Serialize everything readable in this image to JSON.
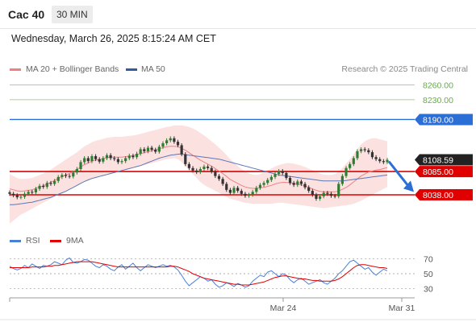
{
  "header": {
    "instrument": "Cac 40",
    "timeframe": "30 MIN"
  },
  "timestamp": "Wednesday, March 26, 2025 8:15:24 AM CET",
  "legend": [
    {
      "label": "MA 20 + Bollinger Bands",
      "color": "#f08080"
    },
    {
      "label": "MA 50",
      "color": "#2f5d9e"
    }
  ],
  "rsi_legend": [
    {
      "label": "RSI",
      "color": "#4a7fd8"
    },
    {
      "label": "9MA",
      "color": "#e00000"
    }
  ],
  "credit": "Research © 2025 Trading Central",
  "chart_data": [
    {
      "type": "candlestick",
      "ylim": [
        7960,
        8285
      ],
      "x_tick_labels": [
        "Mar 24",
        "Mar 31"
      ],
      "levels": [
        {
          "value": 8260,
          "label": "8260.00",
          "kind": "target"
        },
        {
          "value": 8230,
          "label": "8230.00",
          "kind": "target"
        },
        {
          "value": 8190,
          "label": "8190.00",
          "kind": "resistance"
        },
        {
          "value": 8108.59,
          "label": "8108.59",
          "kind": "last"
        },
        {
          "value": 8085,
          "label": "8085.00",
          "kind": "pivot"
        },
        {
          "value": 8038,
          "label": "8038.00",
          "kind": "support"
        }
      ],
      "close": [
        8040,
        8037,
        8033,
        8034,
        8040,
        8044,
        8043,
        8050,
        8056,
        8054,
        8062,
        8060,
        8066,
        8074,
        8078,
        8076,
        8075,
        8083,
        8090,
        8104,
        8112,
        8106,
        8116,
        8110,
        8105,
        8112,
        8118,
        8112,
        8110,
        8104,
        8106,
        8112,
        8117,
        8114,
        8121,
        8130,
        8126,
        8133,
        8129,
        8125,
        8135,
        8142,
        8148,
        8152,
        8145,
        8138,
        8120,
        8100,
        8092,
        8087,
        8084,
        8090,
        8095,
        8092,
        8085,
        8076,
        8070,
        8060,
        8048,
        8042,
        8052,
        8046,
        8040,
        8036,
        8038,
        8044,
        8052,
        8058,
        8062,
        8068,
        8074,
        8080,
        8086,
        8082,
        8072,
        8062,
        8058,
        8065,
        8060,
        8053,
        8046,
        8038,
        8030,
        8035,
        8042,
        8040,
        8036,
        8035,
        8060,
        8076,
        8092,
        8100,
        8112,
        8126,
        8130,
        8128,
        8124,
        8114,
        8110,
        8106,
        8104,
        8108.59
      ],
      "ma20": [
        8050,
        8048,
        8046,
        8045,
        8046,
        8047,
        8048,
        8051,
        8054,
        8056,
        8060,
        8063,
        8067,
        8071,
        8075,
        8078,
        8081,
        8085,
        8089,
        8094,
        8099,
        8102,
        8106,
        8108,
        8109,
        8111,
        8113,
        8114,
        8114,
        8114,
        8114,
        8115,
        8116,
        8117,
        8119,
        8121,
        8123,
        8125,
        8127,
        8129,
        8131,
        8133,
        8135,
        8136,
        8136,
        8135,
        8132,
        8128,
        8123,
        8118,
        8113,
        8108,
        8104,
        8100,
        8096,
        8091,
        8086,
        8081,
        8075,
        8069,
        8065,
        8061,
        8057,
        8054,
        8052,
        8051,
        8051,
        8052,
        8053,
        8055,
        8057,
        8060,
        8062,
        8063,
        8063,
        8062,
        8061,
        8060,
        8058,
        8056,
        8053,
        8050,
        8047,
        8045,
        8044,
        8044,
        8044,
        8044,
        8046,
        8049,
        8053,
        8058,
        8064,
        8070,
        8076,
        8080,
        8084,
        8086,
        8088,
        8089,
        8091,
        8093
      ],
      "bb_upper": [
        8080,
        8076,
        8072,
        8070,
        8070,
        8071,
        8072,
        8075,
        8078,
        8081,
        8085,
        8089,
        8094,
        8099,
        8104,
        8109,
        8114,
        8119,
        8124,
        8130,
        8136,
        8140,
        8144,
        8147,
        8149,
        8151,
        8153,
        8154,
        8155,
        8155,
        8155,
        8156,
        8157,
        8158,
        8159,
        8161,
        8163,
        8165,
        8167,
        8169,
        8171,
        8173,
        8175,
        8176,
        8178,
        8178,
        8178,
        8177,
        8175,
        8172,
        8168,
        8163,
        8158,
        8152,
        8146,
        8140,
        8133,
        8126,
        8118,
        8110,
        8103,
        8096,
        8090,
        8085,
        8081,
        8079,
        8078,
        8080,
        8083,
        8087,
        8091,
        8095,
        8098,
        8100,
        8102,
        8102,
        8101,
        8099,
        8097,
        8094,
        8091,
        8088,
        8084,
        8081,
        8079,
        8078,
        8078,
        8080,
        8085,
        8092,
        8101,
        8110,
        8120,
        8130,
        8140,
        8146,
        8150,
        8152,
        8152,
        8150,
        8148,
        8146
      ],
      "bb_lower": [
        7980,
        7986,
        7992,
        7998,
        8002,
        8006,
        8010,
        8014,
        8018,
        8022,
        8026,
        8030,
        8034,
        8038,
        8042,
        8046,
        8050,
        8054,
        8058,
        8062,
        8066,
        8068,
        8070,
        8072,
        8074,
        8076,
        8078,
        8080,
        8082,
        8084,
        8086,
        8088,
        8090,
        8092,
        8094,
        8096,
        8098,
        8100,
        8102,
        8104,
        8106,
        8108,
        8110,
        8111,
        8112,
        8110,
        8104,
        8096,
        8088,
        8080,
        8072,
        8064,
        8058,
        8054,
        8050,
        8046,
        8042,
        8038,
        8034,
        8030,
        8028,
        8026,
        8024,
        8022,
        8021,
        8020,
        8020,
        8020,
        8020,
        8020,
        8020,
        8021,
        8022,
        8022,
        8021,
        8020,
        8019,
        8018,
        8017,
        8016,
        8015,
        8014,
        8013,
        8012,
        8011,
        8012,
        8013,
        8014,
        8015,
        8016,
        8017,
        8018,
        8020,
        8023,
        8026,
        8030,
        8034,
        8038,
        8042,
        8046,
        8050,
        8054
      ],
      "ma50": [
        8018,
        8018,
        8019,
        8020,
        8021,
        8022,
        8023,
        8025,
        8027,
        8029,
        8031,
        8033,
        8036,
        8039,
        8042,
        8045,
        8049,
        8053,
        8057,
        8061,
        8065,
        8068,
        8071,
        8073,
        8075,
        8077,
        8079,
        8081,
        8083,
        8085,
        8087,
        8089,
        8091,
        8093,
        8095,
        8097,
        8100,
        8103,
        8106,
        8109,
        8112,
        8114,
        8116,
        8118,
        8119,
        8120,
        8120,
        8119,
        8118,
        8117,
        8116,
        8115,
        8114,
        8113,
        8112,
        8111,
        8110,
        8108,
        8106,
        8104,
        8102,
        8100,
        8098,
        8096,
        8094,
        8092,
        8090,
        8088,
        8086,
        8084,
        8082,
        8080,
        8078,
        8077,
        8076,
        8075,
        8074,
        8073,
        8072,
        8071,
        8070,
        8069,
        8068,
        8067,
        8066,
        8066,
        8066,
        8066,
        8066,
        8066,
        8067,
        8068,
        8069,
        8070,
        8071,
        8072,
        8073,
        8074,
        8075,
        8076,
        8077,
        8078
      ]
    },
    {
      "type": "line",
      "title": "RSI",
      "ylim": [
        20,
        80
      ],
      "y_tick_labels": [
        "70",
        "50",
        "30"
      ],
      "y_ticks": [
        70,
        50,
        30
      ],
      "series": [
        {
          "name": "RSI",
          "values": [
            60,
            57,
            55,
            57,
            61,
            58,
            63,
            60,
            57,
            61,
            60,
            62,
            66,
            64,
            62,
            68,
            71,
            65,
            64,
            66,
            69,
            68,
            64,
            60,
            58,
            62,
            60,
            56,
            54,
            59,
            62,
            56,
            60,
            64,
            58,
            54,
            58,
            62,
            60,
            58,
            60,
            62,
            60,
            61,
            59,
            55,
            48,
            40,
            34,
            38,
            42,
            46,
            44,
            40,
            42,
            36,
            32,
            34,
            38,
            36,
            33,
            37,
            35,
            32,
            34,
            40,
            44,
            48,
            46,
            52,
            54,
            50,
            46,
            50,
            48,
            42,
            38,
            42,
            44,
            40,
            36,
            38,
            40,
            42,
            38,
            36,
            40,
            44,
            50,
            54,
            60,
            66,
            68,
            64,
            60,
            56,
            58,
            52,
            48,
            52,
            56,
            54
          ]
        },
        {
          "name": "9MA",
          "values": [
            58,
            58,
            58,
            58,
            58,
            58,
            59,
            59,
            59,
            59,
            60,
            60,
            61,
            61,
            62,
            63,
            64,
            65,
            66,
            66,
            66,
            66,
            66,
            65,
            64,
            63,
            62,
            61,
            60,
            59,
            59,
            59,
            59,
            59,
            59,
            59,
            59,
            59,
            59,
            59,
            59,
            59,
            59,
            60,
            60,
            59,
            57,
            55,
            53,
            50,
            48,
            46,
            44,
            43,
            42,
            41,
            40,
            39,
            38,
            37,
            36,
            36,
            35,
            35,
            35,
            36,
            37,
            38,
            39,
            41,
            43,
            45,
            46,
            47,
            47,
            46,
            45,
            44,
            43,
            43,
            42,
            41,
            41,
            40,
            40,
            40,
            40,
            41,
            43,
            46,
            50,
            54,
            58,
            61,
            62,
            62,
            61,
            60,
            59,
            58,
            58,
            57
          ]
        }
      ]
    }
  ]
}
